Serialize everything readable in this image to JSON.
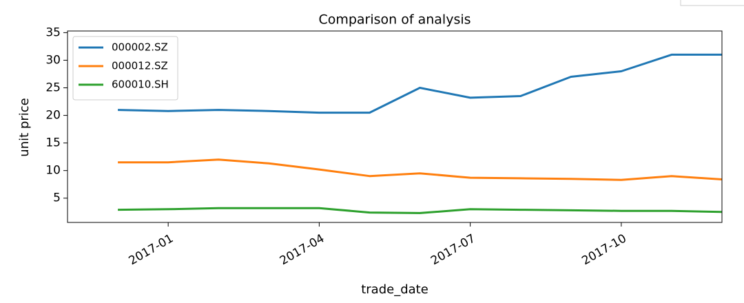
{
  "chart_data": {
    "type": "line",
    "title": "Comparison of analysis",
    "x_label": "trade_date",
    "y_label": "unit price",
    "x": [
      "2016-12",
      "2017-01",
      "2017-02",
      "2017-03",
      "2017-04",
      "2017-05",
      "2017-06",
      "2017-07",
      "2017-08",
      "2017-09",
      "2017-10",
      "2017-11",
      "2017-12"
    ],
    "xlim": [
      "2016-11",
      "2017-12"
    ],
    "xticks": [
      "2017-01",
      "2017-04",
      "2017-07",
      "2017-10"
    ],
    "ylim": [
      0.6,
      35.3
    ],
    "yticks": [
      5,
      10,
      15,
      20,
      25,
      30,
      35
    ],
    "legend": "upper left",
    "series": [
      {
        "name": "000002.SZ",
        "color": "#1f77b4",
        "values": [
          21,
          20.8,
          21,
          20.8,
          20.5,
          20.5,
          25,
          23.2,
          23.5,
          27,
          28,
          31,
          31
        ]
      },
      {
        "name": "000012.SZ",
        "color": "#ff7f0e",
        "values": [
          11.5,
          11.5,
          12,
          11.3,
          10.2,
          9,
          9.5,
          8.7,
          8.6,
          8.5,
          8.3,
          9,
          8.4
        ]
      },
      {
        "name": "600010.SH",
        "color": "#2ca02c",
        "values": [
          2.9,
          3.0,
          3.2,
          3.2,
          3.2,
          2.4,
          2.3,
          3.0,
          2.9,
          2.8,
          2.7,
          2.7,
          2.5
        ]
      }
    ]
  }
}
